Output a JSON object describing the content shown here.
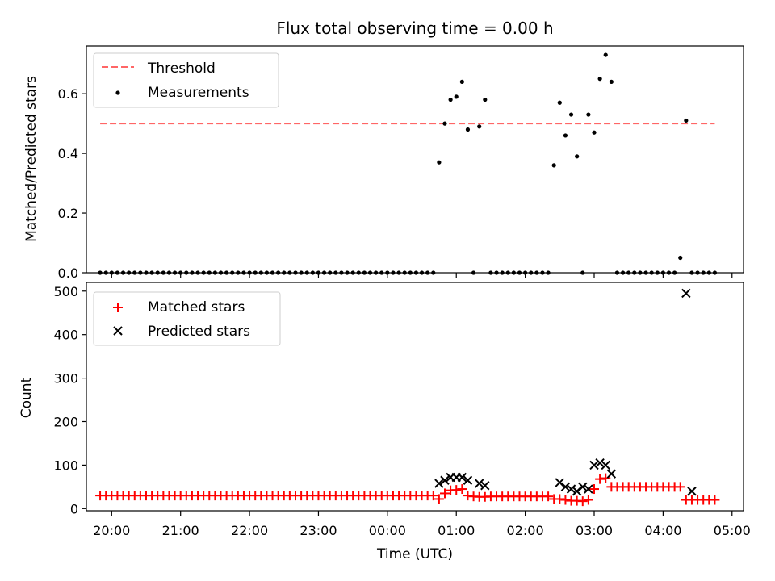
{
  "title": "Flux total observing time = 0.00 h",
  "colors": {
    "threshold": "#ff6666",
    "measurement": "#000000",
    "matched": "#ff0000",
    "predicted": "#000000"
  },
  "chart_data": [
    {
      "type": "scatter",
      "panel": "top",
      "title": "Flux total observing time = 0.00 h",
      "xlabel": "",
      "ylabel": "Matched/Predicted stars",
      "ylim": [
        0,
        0.76
      ],
      "yticks": [
        0.0,
        0.2,
        0.4,
        0.6
      ],
      "ytick_labels": [
        "0.0",
        "0.2",
        "0.4",
        "0.6"
      ],
      "xlim": [
        "19:38",
        "05:10"
      ],
      "legend_position": "top-left",
      "series": [
        {
          "name": "Threshold",
          "kind": "dashed-line",
          "x": [
            "19:50",
            "04:45"
          ],
          "y": [
            0.5,
            0.5
          ]
        },
        {
          "name": "Measurements",
          "kind": "points",
          "x": [
            "19:50",
            "19:55",
            "20:00",
            "20:05",
            "20:10",
            "20:15",
            "20:20",
            "20:25",
            "20:30",
            "20:35",
            "20:40",
            "20:45",
            "20:50",
            "20:55",
            "21:00",
            "21:05",
            "21:10",
            "21:15",
            "21:20",
            "21:25",
            "21:30",
            "21:35",
            "21:40",
            "21:45",
            "21:50",
            "21:55",
            "22:00",
            "22:05",
            "22:10",
            "22:15",
            "22:20",
            "22:25",
            "22:30",
            "22:35",
            "22:40",
            "22:45",
            "22:50",
            "22:55",
            "23:00",
            "23:05",
            "23:10",
            "23:15",
            "23:20",
            "23:25",
            "23:30",
            "23:35",
            "23:40",
            "23:45",
            "23:50",
            "23:55",
            "00:00",
            "00:05",
            "00:10",
            "00:15",
            "00:20",
            "00:25",
            "00:30",
            "00:35",
            "00:40",
            "00:45",
            "00:50",
            "00:55",
            "01:00",
            "01:05",
            "01:10",
            "01:15",
            "01:20",
            "01:25",
            "01:30",
            "01:35",
            "01:40",
            "01:45",
            "01:50",
            "01:55",
            "02:00",
            "02:05",
            "02:10",
            "02:15",
            "02:20",
            "02:25",
            "02:30",
            "02:35",
            "02:40",
            "02:45",
            "02:50",
            "02:55",
            "03:00",
            "03:05",
            "03:10",
            "03:15",
            "03:20",
            "03:25",
            "03:30",
            "03:35",
            "03:40",
            "03:45",
            "03:50",
            "03:55",
            "04:00",
            "04:05",
            "04:10",
            "04:15",
            "04:20",
            "04:25",
            "04:30",
            "04:35",
            "04:40",
            "04:45"
          ],
          "y": [
            0,
            0,
            0,
            0,
            0,
            0,
            0,
            0,
            0,
            0,
            0,
            0,
            0,
            0,
            0,
            0,
            0,
            0,
            0,
            0,
            0,
            0,
            0,
            0,
            0,
            0,
            0,
            0,
            0,
            0,
            0,
            0,
            0,
            0,
            0,
            0,
            0,
            0,
            0,
            0,
            0,
            0,
            0,
            0,
            0,
            0,
            0,
            0,
            0,
            0,
            0,
            0,
            0,
            0,
            0,
            0,
            0,
            0,
            0,
            0.37,
            0.5,
            0.58,
            0.59,
            0.64,
            0.48,
            0,
            0.49,
            0.58,
            0,
            0,
            0,
            0,
            0,
            0,
            0,
            0,
            0,
            0,
            0,
            0.36,
            0.57,
            0.46,
            0.53,
            0.39,
            0,
            0.53,
            0.47,
            0.65,
            0.73,
            0.64,
            0,
            0,
            0,
            0,
            0,
            0,
            0,
            0,
            0,
            0,
            0,
            0.05,
            0.51,
            0,
            0,
            0,
            0,
            0
          ]
        }
      ]
    },
    {
      "type": "scatter",
      "panel": "bottom",
      "xlabel": "Time (UTC)",
      "ylabel": "Count",
      "ylim": [
        -5,
        520
      ],
      "yticks": [
        0,
        100,
        200,
        300,
        400,
        500
      ],
      "ytick_labels": [
        "0",
        "100",
        "200",
        "300",
        "400",
        "500"
      ],
      "xlim": [
        "19:38",
        "05:10"
      ],
      "xticks": [
        "20:00",
        "21:00",
        "22:00",
        "23:00",
        "00:00",
        "01:00",
        "02:00",
        "03:00",
        "04:00",
        "05:00"
      ],
      "legend_position": "top-left",
      "series": [
        {
          "name": "Matched stars",
          "kind": "plus",
          "x": [
            "19:50",
            "19:55",
            "20:00",
            "20:05",
            "20:10",
            "20:15",
            "20:20",
            "20:25",
            "20:30",
            "20:35",
            "20:40",
            "20:45",
            "20:50",
            "20:55",
            "21:00",
            "21:05",
            "21:10",
            "21:15",
            "21:20",
            "21:25",
            "21:30",
            "21:35",
            "21:40",
            "21:45",
            "21:50",
            "21:55",
            "22:00",
            "22:05",
            "22:10",
            "22:15",
            "22:20",
            "22:25",
            "22:30",
            "22:35",
            "22:40",
            "22:45",
            "22:50",
            "22:55",
            "23:00",
            "23:05",
            "23:10",
            "23:15",
            "23:20",
            "23:25",
            "23:30",
            "23:35",
            "23:40",
            "23:45",
            "23:50",
            "23:55",
            "00:00",
            "00:05",
            "00:10",
            "00:15",
            "00:20",
            "00:25",
            "00:30",
            "00:35",
            "00:40",
            "00:45",
            "00:50",
            "00:55",
            "01:00",
            "01:05",
            "01:10",
            "01:15",
            "01:20",
            "01:25",
            "01:30",
            "01:35",
            "01:40",
            "01:45",
            "01:50",
            "01:55",
            "02:00",
            "02:05",
            "02:10",
            "02:15",
            "02:20",
            "02:25",
            "02:30",
            "02:35",
            "02:40",
            "02:45",
            "02:50",
            "02:55",
            "03:00",
            "03:05",
            "03:10",
            "03:15",
            "03:20",
            "03:25",
            "03:30",
            "03:35",
            "03:40",
            "03:45",
            "03:50",
            "03:55",
            "04:00",
            "04:05",
            "04:10",
            "04:15",
            "04:20",
            "04:25",
            "04:30",
            "04:35",
            "04:40",
            "04:45"
          ],
          "y": [
            30,
            30,
            30,
            30,
            30,
            30,
            30,
            30,
            30,
            30,
            30,
            30,
            30,
            30,
            30,
            30,
            30,
            30,
            30,
            30,
            30,
            30,
            30,
            30,
            30,
            30,
            30,
            30,
            30,
            30,
            30,
            30,
            30,
            30,
            30,
            30,
            30,
            30,
            30,
            30,
            30,
            30,
            30,
            30,
            30,
            30,
            30,
            30,
            30,
            30,
            30,
            30,
            30,
            30,
            30,
            30,
            30,
            30,
            30,
            22,
            35,
            42,
            43,
            45,
            30,
            28,
            27,
            27,
            28,
            28,
            28,
            28,
            28,
            28,
            28,
            28,
            28,
            28,
            28,
            22,
            22,
            20,
            18,
            18,
            17,
            20,
            45,
            68,
            70,
            50,
            50,
            50,
            50,
            50,
            50,
            50,
            50,
            50,
            50,
            50,
            50,
            50,
            20,
            20,
            20,
            20,
            20,
            20
          ]
        },
        {
          "name": "Predicted stars",
          "kind": "x",
          "x": [
            "00:45",
            "00:50",
            "00:55",
            "01:00",
            "01:05",
            "01:10",
            "01:20",
            "01:25",
            "02:30",
            "02:35",
            "02:40",
            "02:45",
            "02:50",
            "02:55",
            "03:00",
            "03:05",
            "03:10",
            "03:15",
            "04:20",
            "04:25"
          ],
          "y": [
            58,
            65,
            72,
            72,
            72,
            65,
            58,
            53,
            60,
            50,
            45,
            40,
            50,
            45,
            100,
            105,
            100,
            80,
            495,
            40
          ]
        }
      ]
    }
  ]
}
